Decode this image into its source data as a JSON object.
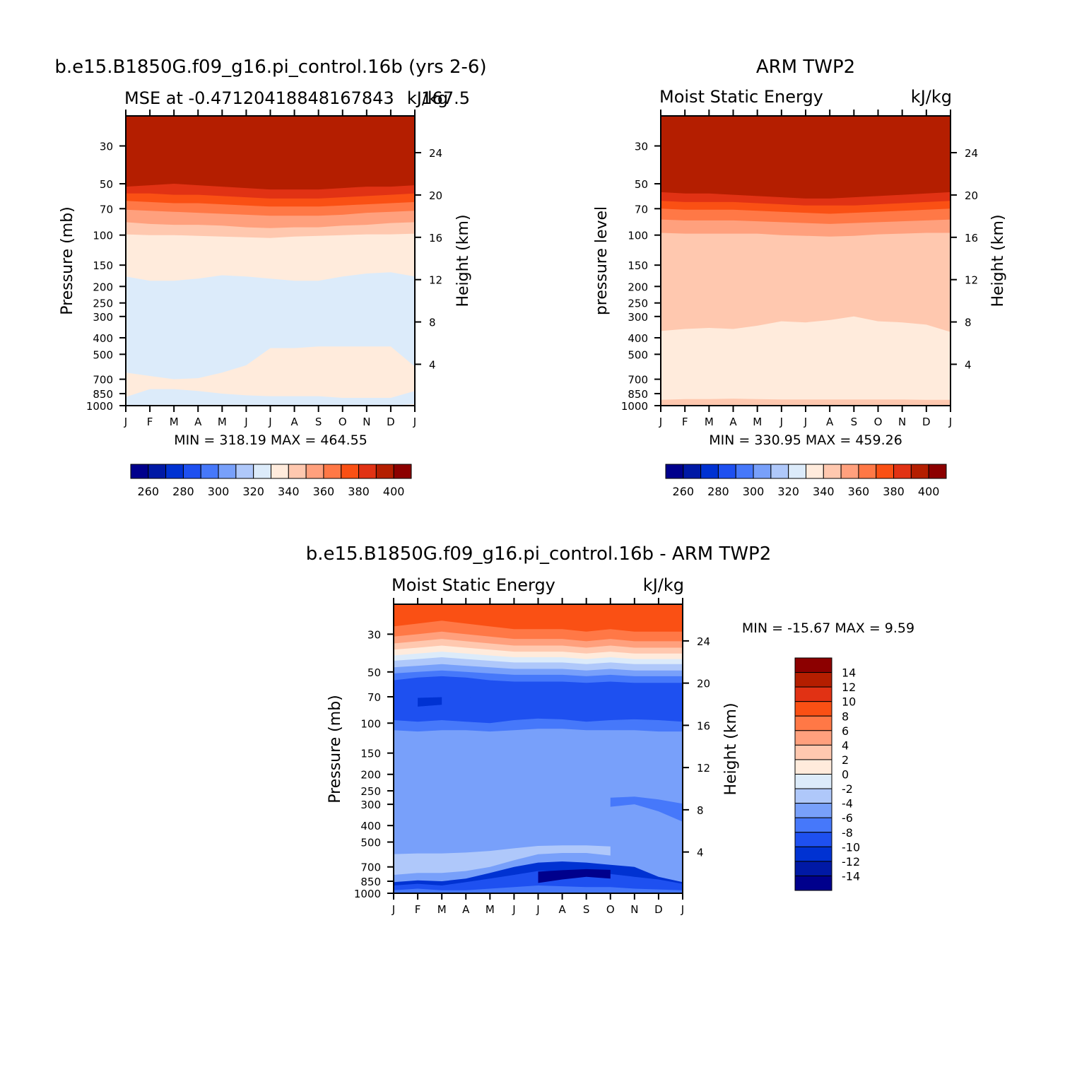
{
  "colors": {
    "ramp15": [
      "#00008c",
      "#0019a5",
      "#0032d2",
      "#1e50f0",
      "#4678fa",
      "#78a0fa",
      "#afc8fa",
      "#dcebfa",
      "#ffebdc",
      "#ffc8af",
      "#ffa07d",
      "#ff7846",
      "#fa5014",
      "#e13214",
      "#b41e00",
      "#8c0000"
    ]
  },
  "chart_data": [
    {
      "id": "model",
      "type": "heatmap",
      "title": "b.e15.B1850G.f09_g16.pi_control.16b (yrs 2-6)",
      "left_subtitle": "MSE at -0.47120418848167843",
      "center_subtitle": "167.5",
      "units": "kJ/kg",
      "ylabel": "Pressure (mb)",
      "y2label": "Height (km)",
      "x_ticks": [
        "J",
        "F",
        "M",
        "A",
        "M",
        "J",
        "J",
        "A",
        "S",
        "O",
        "N",
        "D",
        "J"
      ],
      "y_ticks": [
        30,
        50,
        70,
        100,
        150,
        200,
        250,
        300,
        400,
        500,
        700,
        850,
        1000
      ],
      "y2_ticks": [
        24,
        20,
        16,
        12,
        8,
        4
      ],
      "ylim": [
        1000,
        20
      ],
      "stats": "MIN = 318.19 MAX = 464.55",
      "colorbar_labels": [
        "260",
        "280",
        "300",
        "320",
        "340",
        "360",
        "380",
        "400"
      ],
      "levels": [
        250,
        260,
        270,
        280,
        290,
        300,
        310,
        320,
        330,
        340,
        350,
        360,
        370,
        380,
        390,
        400
      ],
      "boundaries": [
        {
          "between": [
            "#ffebdc",
            "#dcebfa"
          ],
          "p": [
            1000,
            990,
            990,
            990,
            990,
            990,
            995,
            1000,
            1000,
            1000,
            1000,
            1000,
            980
          ]
        },
        {
          "between": [
            "#dcebfa",
            "#afc8fa"
          ],
          "p": [
            null,
            null,
            null,
            null,
            null,
            null,
            null,
            830,
            760,
            770,
            800,
            null,
            null
          ]
        },
        {
          "between": [
            "#dcebfa",
            "#ffebdc"
          ],
          "p": [
            890,
            800,
            800,
            820,
            850,
            870,
            880,
            880,
            880,
            900,
            900,
            900,
            820
          ]
        },
        {
          "between": [
            "#ffebdc",
            "#dcebfa"
          ],
          "p": [
            640,
            670,
            700,
            690,
            640,
            580,
            460,
            460,
            450,
            450,
            450,
            450,
            590
          ]
        },
        {
          "between": [
            "#ffc8af",
            "#ffebdc"
          ],
          "p": [
            175,
            185,
            185,
            180,
            172,
            175,
            180,
            185,
            185,
            175,
            168,
            165,
            175
          ]
        },
        {
          "between": [
            "#ffa07d",
            "#ffc8af"
          ],
          "p": [
            99,
            100,
            100,
            101,
            102,
            103,
            104,
            102,
            101,
            100,
            99,
            99,
            98
          ]
        },
        {
          "between": [
            "#ff7846",
            "#ffa07d"
          ],
          "p": [
            84,
            86,
            87,
            87,
            88,
            90,
            91,
            90,
            90,
            88,
            87,
            85,
            84
          ]
        },
        {
          "between": [
            "#fa5014",
            "#ff7846"
          ],
          "p": [
            71,
            72,
            73,
            74,
            75,
            76,
            77,
            77,
            77,
            76,
            74,
            73,
            72
          ]
        },
        {
          "between": [
            "#e13214",
            "#fa5014"
          ],
          "p": [
            63,
            64,
            65,
            65,
            66,
            67,
            68,
            68,
            68,
            67,
            66,
            65,
            64
          ]
        },
        {
          "between": [
            "#b41e00",
            "#e13214"
          ],
          "p": [
            57,
            57,
            58,
            58,
            59,
            60,
            61,
            61,
            61,
            60,
            59,
            58,
            57
          ]
        },
        {
          "between": [
            "#8c0000",
            "#b41e00"
          ],
          "p": [
            52,
            51,
            50,
            51,
            52,
            53,
            54,
            54,
            54,
            53,
            52,
            52,
            51
          ]
        }
      ]
    },
    {
      "id": "obs",
      "type": "heatmap",
      "title": "ARM TWP2",
      "left_subtitle": "Moist Static Energy",
      "units": "kJ/kg",
      "ylabel": "pressure level",
      "y2label": "Height (km)",
      "x_ticks": [
        "J",
        "F",
        "M",
        "A",
        "M",
        "J",
        "J",
        "A",
        "S",
        "O",
        "N",
        "D",
        "J"
      ],
      "y_ticks": [
        30,
        50,
        70,
        100,
        150,
        200,
        250,
        300,
        400,
        500,
        700,
        850,
        1000
      ],
      "y2_ticks": [
        24,
        20,
        16,
        12,
        8,
        4
      ],
      "ylim": [
        1000,
        20
      ],
      "stats": "MIN = 330.95 MAX = 459.26",
      "colorbar_labels": [
        "260",
        "280",
        "300",
        "320",
        "340",
        "360",
        "380",
        "400"
      ],
      "levels": [
        250,
        260,
        270,
        280,
        290,
        300,
        310,
        320,
        330,
        340,
        350,
        360,
        370,
        380,
        390,
        400
      ],
      "boundaries": [
        {
          "between": [
            "#ffc8af",
            "#ffebdc"
          ],
          "p": [
            925,
            915,
            915,
            910,
            915,
            920,
            920,
            920,
            920,
            920,
            920,
            925,
            925
          ]
        },
        {
          "between": [
            "#ffebdc",
            "#ffc8af"
          ],
          "p": [
            365,
            355,
            350,
            355,
            340,
            320,
            325,
            315,
            300,
            320,
            325,
            335,
            370
          ]
        },
        {
          "between": [
            "#ffa07d",
            "#ffc8af"
          ],
          "p": [
            125,
            126,
            126,
            126,
            126,
            127,
            128,
            128,
            128,
            127,
            126,
            126,
            125
          ]
        },
        {
          "between": [
            "#ff7846",
            "#ffa07d"
          ],
          "p": [
            97,
            98,
            98,
            98,
            98,
            100,
            101,
            102,
            101,
            99,
            98,
            97,
            97
          ]
        },
        {
          "between": [
            "#fa5014",
            "#ff7846"
          ],
          "p": [
            81,
            82,
            82,
            82,
            83,
            84,
            85,
            86,
            85,
            84,
            83,
            82,
            81
          ]
        },
        {
          "between": [
            "#e13214",
            "#fa5014"
          ],
          "p": [
            70,
            71,
            71,
            71,
            72,
            73,
            74,
            75,
            74,
            73,
            72,
            71,
            70
          ]
        },
        {
          "between": [
            "#b41e00",
            "#e13214"
          ],
          "p": [
            63,
            64,
            64,
            64,
            65,
            66,
            67,
            67,
            67,
            66,
            65,
            64,
            63
          ]
        },
        {
          "between": [
            "#8c0000",
            "#b41e00"
          ],
          "p": [
            56,
            57,
            57,
            58,
            59,
            60,
            61,
            61,
            60,
            59,
            58,
            57,
            56
          ]
        }
      ]
    },
    {
      "id": "diff",
      "type": "heatmap",
      "title": "b.e15.B1850G.f09_g16.pi_control.16b - ARM TWP2",
      "left_subtitle": "Moist Static Energy",
      "units": "kJ/kg",
      "ylabel": "Pressure (mb)",
      "y2label": "Height (km)",
      "x_ticks": [
        "J",
        "F",
        "M",
        "A",
        "M",
        "J",
        "J",
        "A",
        "S",
        "O",
        "N",
        "D",
        "J"
      ],
      "y_ticks": [
        30,
        50,
        70,
        100,
        150,
        200,
        250,
        300,
        400,
        500,
        700,
        850,
        1000
      ],
      "y2_ticks": [
        24,
        20,
        16,
        12,
        8,
        4
      ],
      "ylim": [
        1000,
        20
      ],
      "stats": "MIN = -15.67 MAX =    9.59",
      "colorbar_labels": [
        "14",
        "12",
        "10",
        "8",
        "6",
        "4",
        "2",
        "0",
        "-2",
        "-4",
        "-6",
        "-8",
        "-10",
        "-12",
        "-14"
      ],
      "levels": [
        -14,
        -12,
        -10,
        -8,
        -6,
        -4,
        -2,
        0,
        2,
        4,
        6,
        8,
        10,
        12,
        14
      ],
      "boundaries": [
        {
          "between": [
            "#78a0fa",
            "#4678fa"
          ],
          "p": [
            1000,
            990,
            1000,
            1000,
            1000,
            1000,
            1000,
            1000,
            1000,
            1000,
            1000,
            1000,
            1000
          ]
        },
        {
          "between": [
            "#4678fa",
            "#1e50f0"
          ],
          "p": [
            960,
            940,
            960,
            960,
            940,
            920,
            900,
            910,
            920,
            920,
            940,
            950,
            960
          ]
        },
        {
          "between": [
            "#1e50f0",
            "#0032d2"
          ],
          "p": [
            900,
            880,
            900,
            860,
            820,
            780,
            740,
            740,
            760,
            770,
            800,
            830,
            880
          ]
        },
        {
          "between": [
            "#0032d2",
            "#00008c"
          ],
          "p": [
            null,
            null,
            null,
            null,
            null,
            null,
            870,
            830,
            800,
            820,
            null,
            null,
            null
          ]
        },
        {
          "between": [
            "#4678fa",
            "#78a0fa"
          ],
          "p": [
            860,
            840,
            850,
            820,
            760,
            700,
            660,
            650,
            660,
            680,
            700,
            800,
            860
          ]
        },
        {
          "between": [
            "#78a0fa",
            "#afc8fa"
          ],
          "p": [
            780,
            760,
            760,
            740,
            700,
            640,
            590,
            580,
            580,
            600,
            null,
            null,
            null
          ]
        },
        {
          "between": [
            "#afc8fa",
            "#78a0fa"
          ],
          "p": [
            440,
            430,
            430,
            430,
            430,
            440,
            440,
            440,
            450,
            460,
            470,
            480,
            490
          ]
        },
        {
          "between": [
            "#78a0fa",
            "#4678fa"
          ],
          "p": [
            null,
            null,
            null,
            null,
            null,
            null,
            null,
            null,
            null,
            310,
            300,
            330,
            380
          ]
        },
        {
          "between": [
            "#4678fa",
            "#78a0fa"
          ],
          "p": [
            118,
            120,
            118,
            118,
            120,
            118,
            118,
            118,
            120,
            118,
            118,
            120,
            120
          ]
        },
        {
          "between": [
            "#1e50f0",
            "#4678fa"
          ],
          "p": [
            110,
            112,
            110,
            110,
            112,
            110,
            108,
            108,
            110,
            110,
            110,
            112,
            112
          ]
        },
        {
          "between": [
            "#0032d2",
            "#1e50f0"
          ],
          "p": [
            96,
            98,
            96,
            98,
            100,
            96,
            94,
            95,
            98,
            96,
            95,
            96,
            98
          ]
        },
        {
          "between": [
            "#00008c",
            "#0032d2"
          ],
          "p": [
            null,
            80,
            78,
            null,
            null,
            null,
            null,
            null,
            null,
            null,
            null,
            null,
            null
          ]
        },
        {
          "between": [
            "#0032d2",
            "#1e50f0"
          ],
          "p": [
            70,
            68,
            68,
            70,
            72,
            70,
            70,
            68,
            70,
            70,
            72,
            70,
            70
          ]
        },
        {
          "between": [
            "#1e50f0",
            "#4678fa"
          ],
          "p": [
            56,
            54,
            53,
            54,
            56,
            57,
            57,
            57,
            58,
            57,
            58,
            58,
            58
          ]
        },
        {
          "between": [
            "#4678fa",
            "#78a0fa"
          ],
          "p": [
            51,
            50,
            49,
            50,
            51,
            52,
            52,
            52,
            53,
            52,
            53,
            53,
            53
          ]
        },
        {
          "between": [
            "#78a0fa",
            "#afc8fa"
          ],
          "p": [
            47,
            46,
            45,
            46,
            47,
            48,
            48,
            48,
            49,
            48,
            49,
            49,
            49
          ]
        },
        {
          "between": [
            "#afc8fa",
            "#dcebfa"
          ],
          "p": [
            43,
            42,
            41,
            42,
            43,
            44,
            44,
            44,
            45,
            44,
            45,
            45,
            45
          ]
        },
        {
          "between": [
            "#dcebfa",
            "#ffebdc"
          ],
          "p": [
            40,
            39,
            38,
            39,
            40,
            41,
            41,
            41,
            42,
            41,
            42,
            42,
            42
          ]
        },
        {
          "between": [
            "#ffebdc",
            "#ffc8af"
          ],
          "p": [
            37,
            36,
            35,
            36,
            37,
            38,
            38,
            38,
            39,
            38,
            39,
            39,
            39
          ]
        },
        {
          "between": [
            "#ffc8af",
            "#ffa07d"
          ],
          "p": [
            34,
            33,
            32,
            33,
            34,
            35,
            35,
            35,
            36,
            35,
            36,
            36,
            36
          ]
        },
        {
          "between": [
            "#ffa07d",
            "#ff7846"
          ],
          "p": [
            31,
            30,
            29,
            30,
            31,
            32,
            32,
            32,
            33,
            32,
            33,
            33,
            33
          ]
        },
        {
          "between": [
            "#ff7846",
            "#fa5014"
          ],
          "p": [
            27,
            26,
            25,
            26,
            27,
            28,
            28,
            28,
            29,
            28,
            29,
            29,
            29
          ]
        }
      ]
    }
  ]
}
